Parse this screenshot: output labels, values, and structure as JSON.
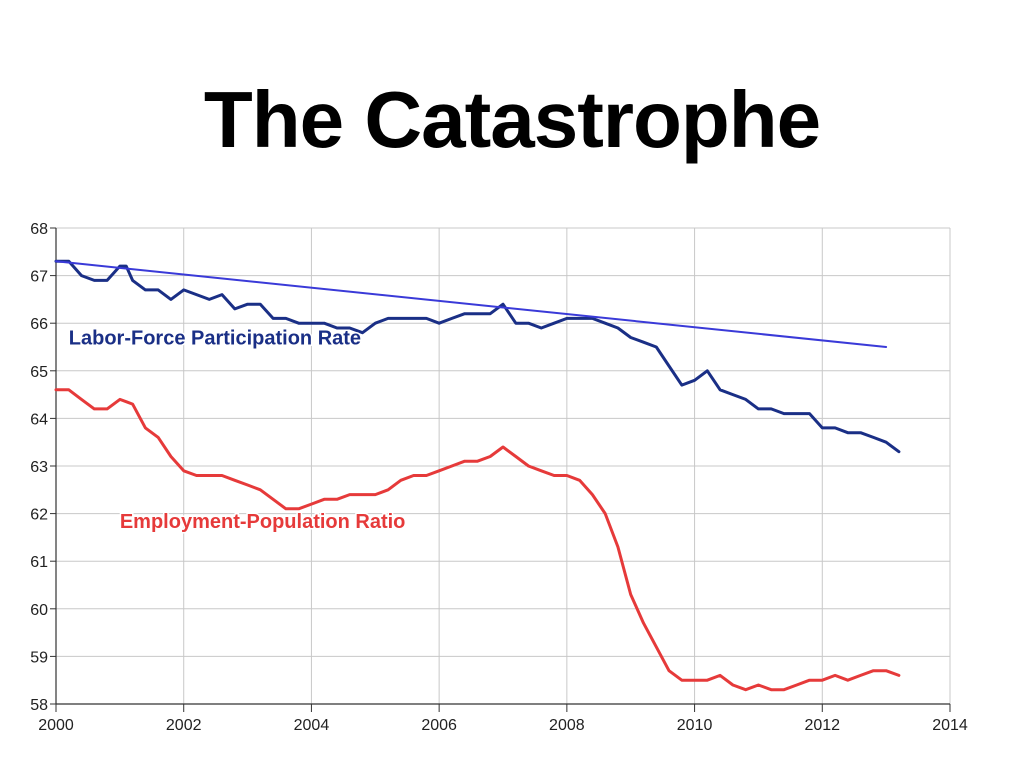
{
  "slide": {
    "title": "The Catastrophe"
  },
  "colors": {
    "lfpr": "#1a2f86",
    "epop": "#e63a3a",
    "trend": "#3a3ad8",
    "grid": "#c8c8c8"
  },
  "chart_data": {
    "type": "line",
    "title": "",
    "xlabel": "",
    "ylabel": "",
    "xlim": [
      2000,
      2014
    ],
    "ylim": [
      58,
      68
    ],
    "grid": true,
    "xticks": [
      2000,
      2002,
      2004,
      2006,
      2008,
      2010,
      2012,
      2014
    ],
    "yticks": [
      58,
      59,
      60,
      61,
      62,
      63,
      64,
      65,
      66,
      67,
      68
    ],
    "xtick_labels": [
      "2000",
      "2002",
      "2004",
      "2006",
      "2008",
      "2010",
      "2012",
      "2014"
    ],
    "ytick_labels": [
      "58",
      "59",
      "60",
      "61",
      "62",
      "63",
      "64",
      "65",
      "66",
      "67",
      "68"
    ],
    "series": [
      {
        "name": "Labor-Force Participation Rate",
        "color": "#1a2f86",
        "x": [
          2000.0,
          2000.2,
          2000.4,
          2000.6,
          2000.8,
          2001.0,
          2001.1,
          2001.2,
          2001.4,
          2001.6,
          2001.8,
          2002.0,
          2002.2,
          2002.4,
          2002.6,
          2002.8,
          2003.0,
          2003.2,
          2003.4,
          2003.6,
          2003.8,
          2004.0,
          2004.2,
          2004.4,
          2004.6,
          2004.8,
          2005.0,
          2005.2,
          2005.4,
          2005.6,
          2005.8,
          2006.0,
          2006.2,
          2006.4,
          2006.6,
          2006.8,
          2007.0,
          2007.2,
          2007.4,
          2007.6,
          2007.8,
          2008.0,
          2008.2,
          2008.4,
          2008.6,
          2008.8,
          2009.0,
          2009.2,
          2009.4,
          2009.6,
          2009.8,
          2010.0,
          2010.2,
          2010.4,
          2010.6,
          2010.8,
          2011.0,
          2011.2,
          2011.4,
          2011.6,
          2011.8,
          2012.0,
          2012.2,
          2012.4,
          2012.6,
          2012.8,
          2013.0,
          2013.2
        ],
        "values": [
          67.3,
          67.3,
          67.0,
          66.9,
          66.9,
          67.2,
          67.2,
          66.9,
          66.7,
          66.7,
          66.5,
          66.7,
          66.6,
          66.5,
          66.6,
          66.3,
          66.4,
          66.4,
          66.1,
          66.1,
          66.0,
          66.0,
          66.0,
          65.9,
          65.9,
          65.8,
          66.0,
          66.1,
          66.1,
          66.1,
          66.1,
          66.0,
          66.1,
          66.2,
          66.2,
          66.2,
          66.4,
          66.0,
          66.0,
          65.9,
          66.0,
          66.1,
          66.1,
          66.1,
          66.0,
          65.9,
          65.7,
          65.6,
          65.5,
          65.1,
          64.7,
          64.8,
          65.0,
          64.6,
          64.5,
          64.4,
          64.2,
          64.2,
          64.1,
          64.1,
          64.1,
          63.8,
          63.8,
          63.7,
          63.7,
          63.6,
          63.5,
          63.3
        ]
      },
      {
        "name": "Employment-Population Ratio",
        "color": "#e63a3a",
        "x": [
          2000.0,
          2000.2,
          2000.4,
          2000.6,
          2000.8,
          2001.0,
          2001.2,
          2001.4,
          2001.6,
          2001.8,
          2002.0,
          2002.2,
          2002.4,
          2002.6,
          2002.8,
          2003.0,
          2003.2,
          2003.4,
          2003.6,
          2003.8,
          2004.0,
          2004.2,
          2004.4,
          2004.6,
          2004.8,
          2005.0,
          2005.2,
          2005.4,
          2005.6,
          2005.8,
          2006.0,
          2006.2,
          2006.4,
          2006.6,
          2006.8,
          2007.0,
          2007.2,
          2007.4,
          2007.6,
          2007.8,
          2008.0,
          2008.2,
          2008.4,
          2008.6,
          2008.8,
          2009.0,
          2009.2,
          2009.4,
          2009.6,
          2009.8,
          2010.0,
          2010.2,
          2010.4,
          2010.6,
          2010.8,
          2011.0,
          2011.2,
          2011.4,
          2011.6,
          2011.8,
          2012.0,
          2012.2,
          2012.4,
          2012.6,
          2012.8,
          2013.0,
          2013.2
        ],
        "values": [
          64.6,
          64.6,
          64.4,
          64.2,
          64.2,
          64.4,
          64.3,
          63.8,
          63.6,
          63.2,
          62.9,
          62.8,
          62.8,
          62.8,
          62.7,
          62.6,
          62.5,
          62.3,
          62.1,
          62.1,
          62.2,
          62.3,
          62.3,
          62.4,
          62.4,
          62.4,
          62.5,
          62.7,
          62.8,
          62.8,
          62.9,
          63.0,
          63.1,
          63.1,
          63.2,
          63.4,
          63.2,
          63.0,
          62.9,
          62.8,
          62.8,
          62.7,
          62.4,
          62.0,
          61.3,
          60.3,
          59.7,
          59.2,
          58.7,
          58.5,
          58.5,
          58.5,
          58.6,
          58.4,
          58.3,
          58.4,
          58.3,
          58.3,
          58.4,
          58.5,
          58.5,
          58.6,
          58.5,
          58.6,
          58.7,
          58.7,
          58.6
        ]
      },
      {
        "name": "",
        "color": "#3a3ad8",
        "x": [
          2000.0,
          2013.0
        ],
        "values": [
          67.3,
          65.5
        ]
      }
    ],
    "annotations": [
      {
        "text": "Labor-Force Participation Rate",
        "x": 2000.2,
        "y": 65.55,
        "color": "#1a2f86"
      },
      {
        "text": "Employment-Population Ratio",
        "x": 2001.0,
        "y": 61.7,
        "color": "#e63a3a"
      }
    ]
  }
}
